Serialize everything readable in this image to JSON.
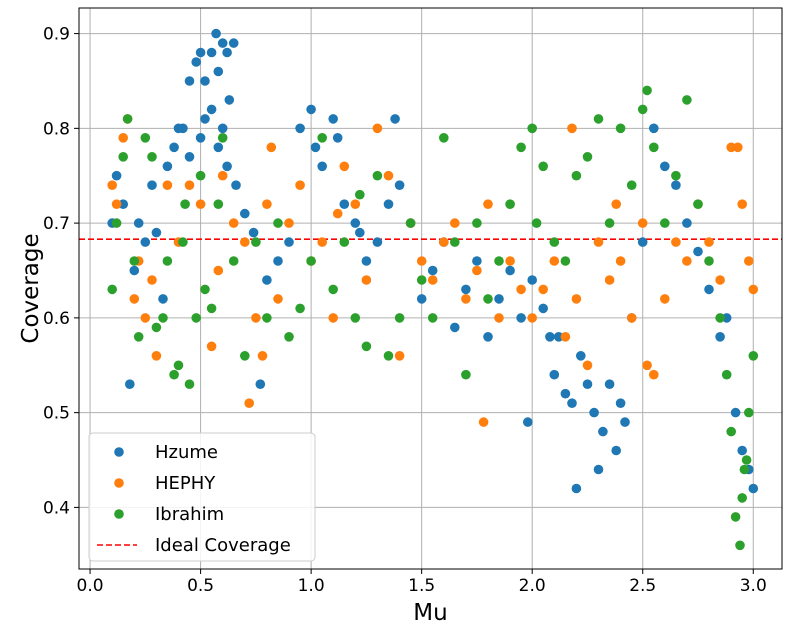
{
  "chart_data": {
    "type": "scatter",
    "title": "",
    "xlabel": "Mu",
    "ylabel": "Coverage",
    "xlim": [
      -0.05,
      3.13
    ],
    "ylim": [
      0.335,
      0.927
    ],
    "xticks": [
      "0.0",
      "0.5",
      "1.0",
      "1.5",
      "2.0",
      "2.5",
      "3.0"
    ],
    "yticks": [
      "0.4",
      "0.5",
      "0.6",
      "0.7",
      "0.8",
      "0.9"
    ],
    "grid": true,
    "legend_position": "lower-left",
    "ideal_coverage": {
      "name": "Ideal Coverage",
      "y": 0.683,
      "color": "#ff0000",
      "style": "dashed"
    },
    "series": [
      {
        "name": "Hzume",
        "color": "#1f77b4",
        "points": [
          [
            0.1,
            0.7
          ],
          [
            0.12,
            0.75
          ],
          [
            0.15,
            0.72
          ],
          [
            0.18,
            0.53
          ],
          [
            0.2,
            0.65
          ],
          [
            0.22,
            0.7
          ],
          [
            0.25,
            0.68
          ],
          [
            0.28,
            0.74
          ],
          [
            0.3,
            0.69
          ],
          [
            0.35,
            0.76
          ],
          [
            0.38,
            0.78
          ],
          [
            0.4,
            0.8
          ],
          [
            0.42,
            0.8
          ],
          [
            0.45,
            0.85
          ],
          [
            0.48,
            0.87
          ],
          [
            0.5,
            0.88
          ],
          [
            0.52,
            0.85
          ],
          [
            0.55,
            0.88
          ],
          [
            0.57,
            0.9
          ],
          [
            0.58,
            0.86
          ],
          [
            0.6,
            0.89
          ],
          [
            0.62,
            0.88
          ],
          [
            0.63,
            0.83
          ],
          [
            0.65,
            0.89
          ],
          [
            0.55,
            0.82
          ],
          [
            0.6,
            0.8
          ],
          [
            0.5,
            0.79
          ],
          [
            0.45,
            0.77
          ],
          [
            0.52,
            0.81
          ],
          [
            0.58,
            0.78
          ],
          [
            0.62,
            0.76
          ],
          [
            0.66,
            0.74
          ],
          [
            0.7,
            0.71
          ],
          [
            0.74,
            0.69
          ],
          [
            0.77,
            0.53
          ],
          [
            0.8,
            0.64
          ],
          [
            0.9,
            0.68
          ],
          [
            0.95,
            0.8
          ],
          [
            1.0,
            0.82
          ],
          [
            1.02,
            0.78
          ],
          [
            1.05,
            0.76
          ],
          [
            1.1,
            0.81
          ],
          [
            1.12,
            0.79
          ],
          [
            1.15,
            0.72
          ],
          [
            1.2,
            0.7
          ],
          [
            1.25,
            0.66
          ],
          [
            1.3,
            0.68
          ],
          [
            1.35,
            0.72
          ],
          [
            1.38,
            0.81
          ],
          [
            1.4,
            0.74
          ],
          [
            1.45,
            0.7
          ],
          [
            1.5,
            0.62
          ],
          [
            1.55,
            0.65
          ],
          [
            1.6,
            0.68
          ],
          [
            1.65,
            0.59
          ],
          [
            1.7,
            0.63
          ],
          [
            1.75,
            0.66
          ],
          [
            1.8,
            0.58
          ],
          [
            1.85,
            0.62
          ],
          [
            1.9,
            0.65
          ],
          [
            1.95,
            0.6
          ],
          [
            2.0,
            0.64
          ],
          [
            2.05,
            0.61
          ],
          [
            2.08,
            0.58
          ],
          [
            2.1,
            0.54
          ],
          [
            2.12,
            0.58
          ],
          [
            2.15,
            0.52
          ],
          [
            2.18,
            0.51
          ],
          [
            2.2,
            0.42
          ],
          [
            2.22,
            0.56
          ],
          [
            2.25,
            0.53
          ],
          [
            2.28,
            0.5
          ],
          [
            2.3,
            0.44
          ],
          [
            2.32,
            0.48
          ],
          [
            2.35,
            0.53
          ],
          [
            2.38,
            0.46
          ],
          [
            2.4,
            0.51
          ],
          [
            2.42,
            0.49
          ],
          [
            2.45,
            0.6
          ],
          [
            2.5,
            0.68
          ],
          [
            2.55,
            0.8
          ],
          [
            2.6,
            0.76
          ],
          [
            2.65,
            0.74
          ],
          [
            2.7,
            0.7
          ],
          [
            2.75,
            0.67
          ],
          [
            2.8,
            0.63
          ],
          [
            2.85,
            0.58
          ],
          [
            2.88,
            0.6
          ],
          [
            2.92,
            0.5
          ],
          [
            2.95,
            0.46
          ],
          [
            2.98,
            0.44
          ],
          [
            3.0,
            0.42
          ],
          [
            1.98,
            0.49
          ],
          [
            1.22,
            0.69
          ],
          [
            0.85,
            0.66
          ],
          [
            0.33,
            0.62
          ]
        ]
      },
      {
        "name": "HEPHY",
        "color": "#ff7f0e",
        "points": [
          [
            0.1,
            0.74
          ],
          [
            0.12,
            0.72
          ],
          [
            0.15,
            0.79
          ],
          [
            0.17,
            0.81
          ],
          [
            0.2,
            0.62
          ],
          [
            0.22,
            0.66
          ],
          [
            0.25,
            0.6
          ],
          [
            0.28,
            0.64
          ],
          [
            0.3,
            0.56
          ],
          [
            0.35,
            0.74
          ],
          [
            0.4,
            0.68
          ],
          [
            0.45,
            0.74
          ],
          [
            0.5,
            0.72
          ],
          [
            0.55,
            0.57
          ],
          [
            0.6,
            0.75
          ],
          [
            0.65,
            0.7
          ],
          [
            0.7,
            0.68
          ],
          [
            0.72,
            0.51
          ],
          [
            0.75,
            0.6
          ],
          [
            0.78,
            0.56
          ],
          [
            0.8,
            0.72
          ],
          [
            0.82,
            0.78
          ],
          [
            0.85,
            0.62
          ],
          [
            0.9,
            0.7
          ],
          [
            0.95,
            0.74
          ],
          [
            1.0,
            0.66
          ],
          [
            1.05,
            0.68
          ],
          [
            1.1,
            0.6
          ],
          [
            1.15,
            0.76
          ],
          [
            1.2,
            0.72
          ],
          [
            1.25,
            0.64
          ],
          [
            1.3,
            0.8
          ],
          [
            1.35,
            0.75
          ],
          [
            1.4,
            0.56
          ],
          [
            1.45,
            0.7
          ],
          [
            1.5,
            0.66
          ],
          [
            1.55,
            0.64
          ],
          [
            1.6,
            0.68
          ],
          [
            1.65,
            0.7
          ],
          [
            1.7,
            0.62
          ],
          [
            1.75,
            0.65
          ],
          [
            1.78,
            0.49
          ],
          [
            1.8,
            0.72
          ],
          [
            1.85,
            0.6
          ],
          [
            1.9,
            0.66
          ],
          [
            1.95,
            0.63
          ],
          [
            2.0,
            0.6
          ],
          [
            2.05,
            0.63
          ],
          [
            2.1,
            0.66
          ],
          [
            2.15,
            0.58
          ],
          [
            2.18,
            0.8
          ],
          [
            2.2,
            0.62
          ],
          [
            2.25,
            0.55
          ],
          [
            2.3,
            0.68
          ],
          [
            2.35,
            0.64
          ],
          [
            2.4,
            0.66
          ],
          [
            2.45,
            0.6
          ],
          [
            2.5,
            0.7
          ],
          [
            2.52,
            0.55
          ],
          [
            2.55,
            0.54
          ],
          [
            2.6,
            0.62
          ],
          [
            2.65,
            0.68
          ],
          [
            2.7,
            0.66
          ],
          [
            2.75,
            0.72
          ],
          [
            2.8,
            0.68
          ],
          [
            2.85,
            0.64
          ],
          [
            2.9,
            0.78
          ],
          [
            2.93,
            0.78
          ],
          [
            2.95,
            0.72
          ],
          [
            3.0,
            0.63
          ],
          [
            2.98,
            0.66
          ],
          [
            1.12,
            0.71
          ],
          [
            0.58,
            0.65
          ],
          [
            2.38,
            0.72
          ]
        ]
      },
      {
        "name": "Ibrahim",
        "color": "#2ca02c",
        "points": [
          [
            0.1,
            0.63
          ],
          [
            0.12,
            0.7
          ],
          [
            0.15,
            0.77
          ],
          [
            0.17,
            0.81
          ],
          [
            0.2,
            0.66
          ],
          [
            0.22,
            0.58
          ],
          [
            0.25,
            0.79
          ],
          [
            0.28,
            0.77
          ],
          [
            0.3,
            0.59
          ],
          [
            0.33,
            0.6
          ],
          [
            0.35,
            0.66
          ],
          [
            0.38,
            0.54
          ],
          [
            0.4,
            0.55
          ],
          [
            0.42,
            0.68
          ],
          [
            0.45,
            0.53
          ],
          [
            0.48,
            0.6
          ],
          [
            0.5,
            0.75
          ],
          [
            0.52,
            0.63
          ],
          [
            0.55,
            0.61
          ],
          [
            0.58,
            0.72
          ],
          [
            0.6,
            0.79
          ],
          [
            0.65,
            0.66
          ],
          [
            0.7,
            0.56
          ],
          [
            0.75,
            0.68
          ],
          [
            0.8,
            0.6
          ],
          [
            0.85,
            0.7
          ],
          [
            0.9,
            0.58
          ],
          [
            0.95,
            0.61
          ],
          [
            1.0,
            0.66
          ],
          [
            1.05,
            0.79
          ],
          [
            1.1,
            0.63
          ],
          [
            1.15,
            0.68
          ],
          [
            1.2,
            0.6
          ],
          [
            1.25,
            0.57
          ],
          [
            1.3,
            0.75
          ],
          [
            1.35,
            0.56
          ],
          [
            1.4,
            0.6
          ],
          [
            1.45,
            0.7
          ],
          [
            1.5,
            0.64
          ],
          [
            1.55,
            0.6
          ],
          [
            1.6,
            0.79
          ],
          [
            1.65,
            0.68
          ],
          [
            1.7,
            0.54
          ],
          [
            1.75,
            0.7
          ],
          [
            1.8,
            0.62
          ],
          [
            1.85,
            0.66
          ],
          [
            1.9,
            0.72
          ],
          [
            1.95,
            0.78
          ],
          [
            2.0,
            0.8
          ],
          [
            2.05,
            0.76
          ],
          [
            2.1,
            0.68
          ],
          [
            2.15,
            0.66
          ],
          [
            2.2,
            0.75
          ],
          [
            2.25,
            0.77
          ],
          [
            2.3,
            0.81
          ],
          [
            2.35,
            0.7
          ],
          [
            2.4,
            0.8
          ],
          [
            2.45,
            0.74
          ],
          [
            2.5,
            0.82
          ],
          [
            2.52,
            0.84
          ],
          [
            2.55,
            0.78
          ],
          [
            2.6,
            0.7
          ],
          [
            2.65,
            0.75
          ],
          [
            2.7,
            0.83
          ],
          [
            2.75,
            0.72
          ],
          [
            2.8,
            0.66
          ],
          [
            2.85,
            0.6
          ],
          [
            2.88,
            0.54
          ],
          [
            2.9,
            0.48
          ],
          [
            2.92,
            0.39
          ],
          [
            2.94,
            0.36
          ],
          [
            2.95,
            0.41
          ],
          [
            2.96,
            0.44
          ],
          [
            2.98,
            0.5
          ],
          [
            3.0,
            0.56
          ],
          [
            2.97,
            0.45
          ],
          [
            1.22,
            0.73
          ],
          [
            0.43,
            0.72
          ],
          [
            2.02,
            0.7
          ]
        ]
      }
    ]
  }
}
